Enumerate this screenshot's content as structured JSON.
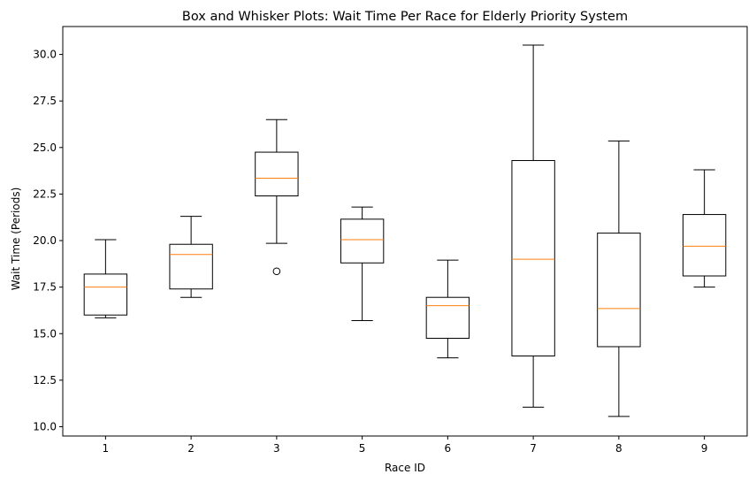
{
  "chart_data": {
    "type": "box",
    "title": "Box and Whisker Plots: Wait Time Per Race for Elderly Priority System",
    "xlabel": "Race ID",
    "ylabel": "Wait Time (Periods)",
    "ylim": [
      9.5,
      31.5
    ],
    "yticks": [
      "10.0",
      "12.5",
      "15.0",
      "17.5",
      "20.0",
      "22.5",
      "25.0",
      "27.5",
      "30.0"
    ],
    "colors": {
      "box": "#000000",
      "median": "#ff7f0e"
    },
    "boxes": [
      {
        "label": "1",
        "whisker_low": 15.85,
        "q1": 16.0,
        "median": 17.5,
        "q3": 18.2,
        "whisker_high": 20.05,
        "outliers": []
      },
      {
        "label": "2",
        "whisker_low": 16.95,
        "q1": 17.4,
        "median": 19.25,
        "q3": 19.8,
        "whisker_high": 21.3,
        "outliers": []
      },
      {
        "label": "3",
        "whisker_low": 19.85,
        "q1": 22.4,
        "median": 23.35,
        "q3": 24.75,
        "whisker_high": 26.5,
        "outliers": [
          18.35
        ]
      },
      {
        "label": "5",
        "whisker_low": 15.7,
        "q1": 18.8,
        "median": 20.05,
        "q3": 21.15,
        "whisker_high": 21.8,
        "outliers": []
      },
      {
        "label": "6",
        "whisker_low": 13.7,
        "q1": 14.75,
        "median": 16.5,
        "q3": 16.95,
        "whisker_high": 18.95,
        "outliers": []
      },
      {
        "label": "7",
        "whisker_low": 11.05,
        "q1": 13.8,
        "median": 19.0,
        "q3": 24.3,
        "whisker_high": 30.5,
        "outliers": []
      },
      {
        "label": "8",
        "whisker_low": 10.55,
        "q1": 14.3,
        "median": 16.35,
        "q3": 20.4,
        "whisker_high": 25.35,
        "outliers": []
      },
      {
        "label": "9",
        "whisker_low": 17.5,
        "q1": 18.1,
        "median": 19.7,
        "q3": 21.4,
        "whisker_high": 23.8,
        "outliers": []
      }
    ]
  }
}
